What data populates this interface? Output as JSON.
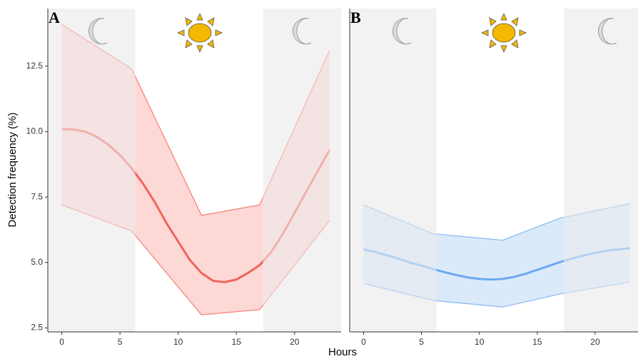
{
  "shared": {
    "xlabel": "Hours",
    "ylabel": "Detection frequency (%)"
  },
  "chart_data": [
    {
      "type": "line",
      "panel_label": "A",
      "xlim": [
        -1.2,
        24
      ],
      "ylim": [
        2.35,
        14.7
      ],
      "xticks": [
        0,
        5,
        10,
        15,
        20
      ],
      "yticks": [
        2.5,
        {
          "value": 5,
          "label": "5.0"
        },
        {
          "value": 7.5,
          "label": "7.5"
        },
        {
          "value": 10,
          "label": "10.0"
        },
        {
          "value": 12.5,
          "label": "12.5"
        }
      ],
      "night_periods": [
        [
          -1.2,
          6.3
        ],
        [
          17.3,
          24
        ]
      ],
      "series": [
        {
          "color": "#f0645c",
          "x": [
            0,
            1,
            2,
            3,
            4,
            5,
            6,
            7,
            8,
            9,
            10,
            11,
            12,
            13,
            14,
            15,
            16,
            17,
            18,
            19,
            20,
            21,
            22,
            23
          ],
          "values": [
            10.1,
            10.08,
            10.0,
            9.8,
            9.5,
            9.1,
            8.6,
            8.0,
            7.3,
            6.5,
            5.8,
            5.1,
            4.6,
            4.3,
            4.25,
            4.35,
            4.6,
            4.9,
            5.4,
            6.1,
            6.9,
            7.7,
            8.5,
            9.3
          ]
        }
      ],
      "band": {
        "color": "#f8766d",
        "x": [
          0,
          6,
          12,
          17,
          23
        ],
        "upper": [
          14.1,
          12.4,
          6.8,
          7.2,
          13.1
        ],
        "lower": [
          7.2,
          6.2,
          3.0,
          3.2,
          6.6
        ]
      }
    },
    {
      "type": "line",
      "panel_label": "B",
      "xlim": [
        -1.2,
        23.7
      ],
      "ylim": [
        2.35,
        14.7
      ],
      "xticks": [
        0,
        5,
        10,
        15,
        20
      ],
      "night_periods": [
        [
          -1.2,
          6.3
        ],
        [
          17.3,
          23.7
        ]
      ],
      "series": [
        {
          "color": "#6aaaf0",
          "x": [
            0,
            1,
            2,
            3,
            4,
            5,
            6,
            7,
            8,
            9,
            10,
            11,
            12,
            13,
            14,
            15,
            16,
            17,
            18,
            19,
            20,
            21,
            22,
            23
          ],
          "values": [
            5.5,
            5.4,
            5.28,
            5.15,
            5.0,
            4.88,
            4.75,
            4.63,
            4.52,
            4.43,
            4.37,
            4.35,
            4.37,
            4.45,
            4.57,
            4.72,
            4.87,
            5.02,
            5.15,
            5.27,
            5.37,
            5.45,
            5.5,
            5.55
          ]
        }
      ],
      "band": {
        "color": "#7fb5f0",
        "x": [
          0,
          6,
          12,
          17,
          23
        ],
        "upper": [
          7.2,
          6.1,
          5.85,
          6.7,
          7.25
        ],
        "lower": [
          4.2,
          3.55,
          3.3,
          3.8,
          4.25
        ]
      }
    }
  ]
}
